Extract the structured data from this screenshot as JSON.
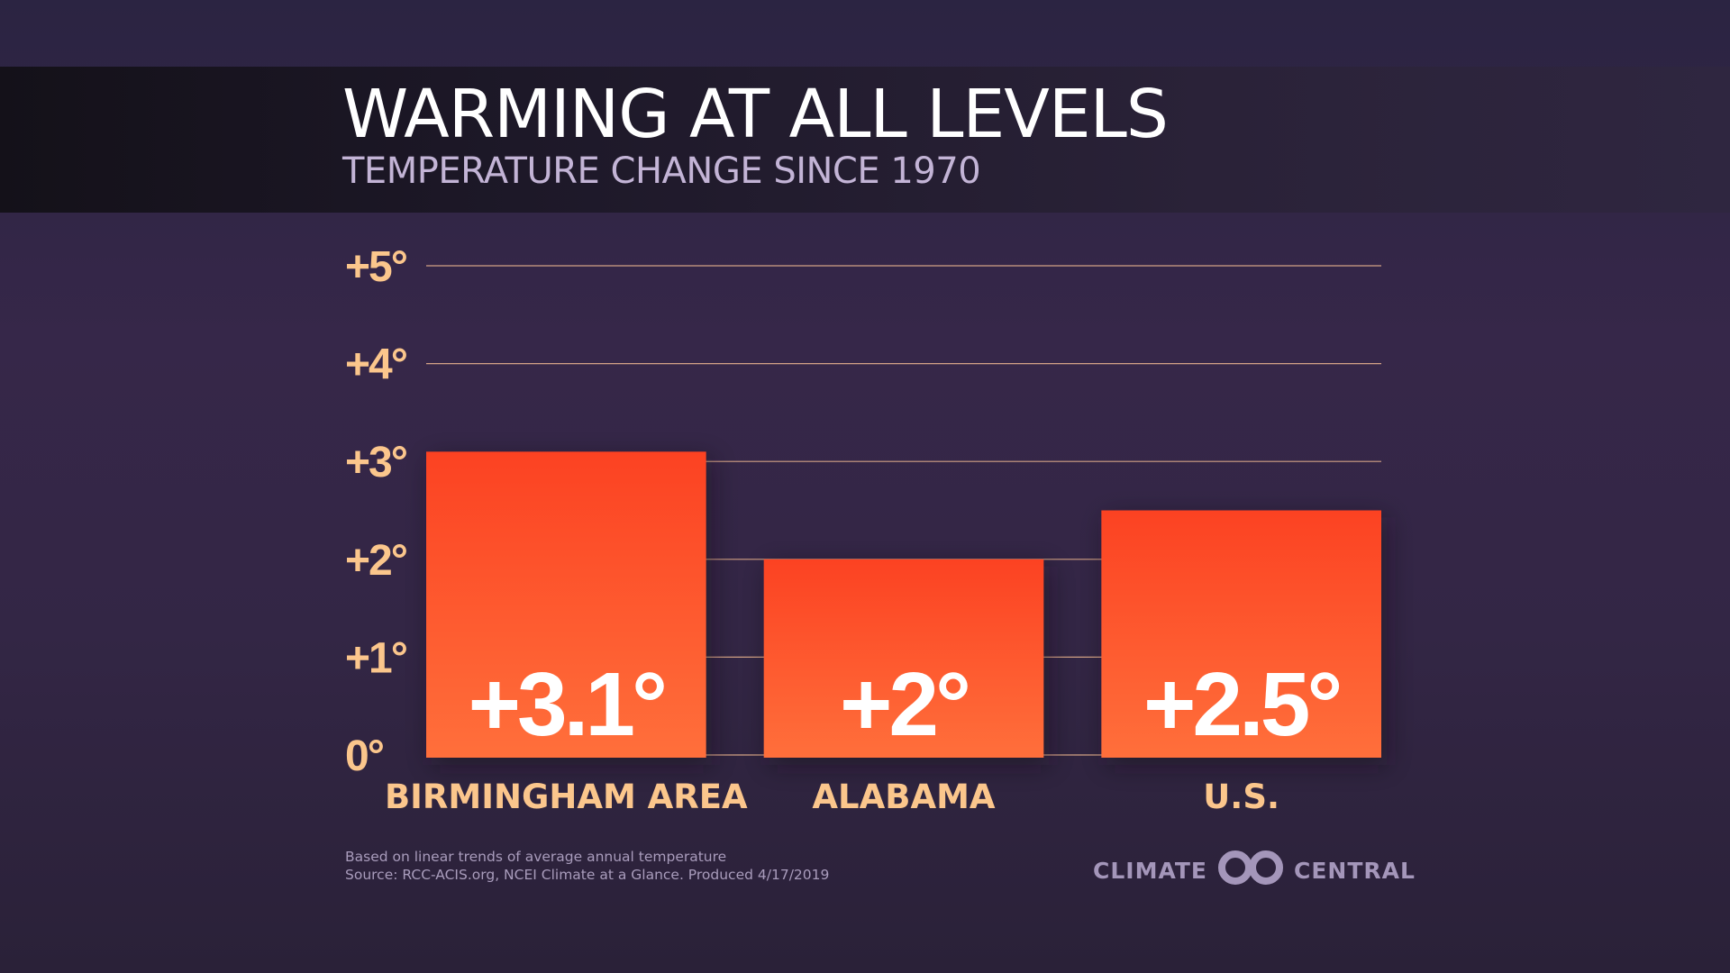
{
  "header": {
    "title": "WARMING AT ALL LEVELS",
    "subtitle": "TEMPERATURE CHANGE SINCE 1970"
  },
  "colors": {
    "bar_top": "#fc4222",
    "bar_bottom": "#ff6f3b",
    "tick_label": "#fbc68c",
    "gridline": "#f0b990"
  },
  "chart_data": {
    "type": "bar",
    "title": "WARMING AT ALL LEVELS",
    "subtitle": "TEMPERATURE CHANGE SINCE 1970",
    "categories": [
      "BIRMINGHAM AREA",
      "ALABAMA",
      "U.S."
    ],
    "values": [
      3.1,
      2,
      2.5
    ],
    "value_labels": [
      "+3.1°",
      "+2°",
      "+2.5°"
    ],
    "ylim": [
      0,
      5
    ],
    "yticks": [
      0,
      1,
      2,
      3,
      4,
      5
    ],
    "ytick_labels": [
      "0°",
      "+1°",
      "+2°",
      "+3°",
      "+4°",
      "+5°"
    ],
    "xlabel": "",
    "ylabel": "",
    "grid": true
  },
  "footer": {
    "note_line1": "Based on linear trends of average annual temperature",
    "note_line2": "Source: RCC-ACIS.org, NCEI Climate at a Glance. Produced 4/17/2019",
    "logo_left": "CLIMATE",
    "logo_right": "CENTRAL",
    "logo_icon": "climate-central-rings-icon"
  }
}
